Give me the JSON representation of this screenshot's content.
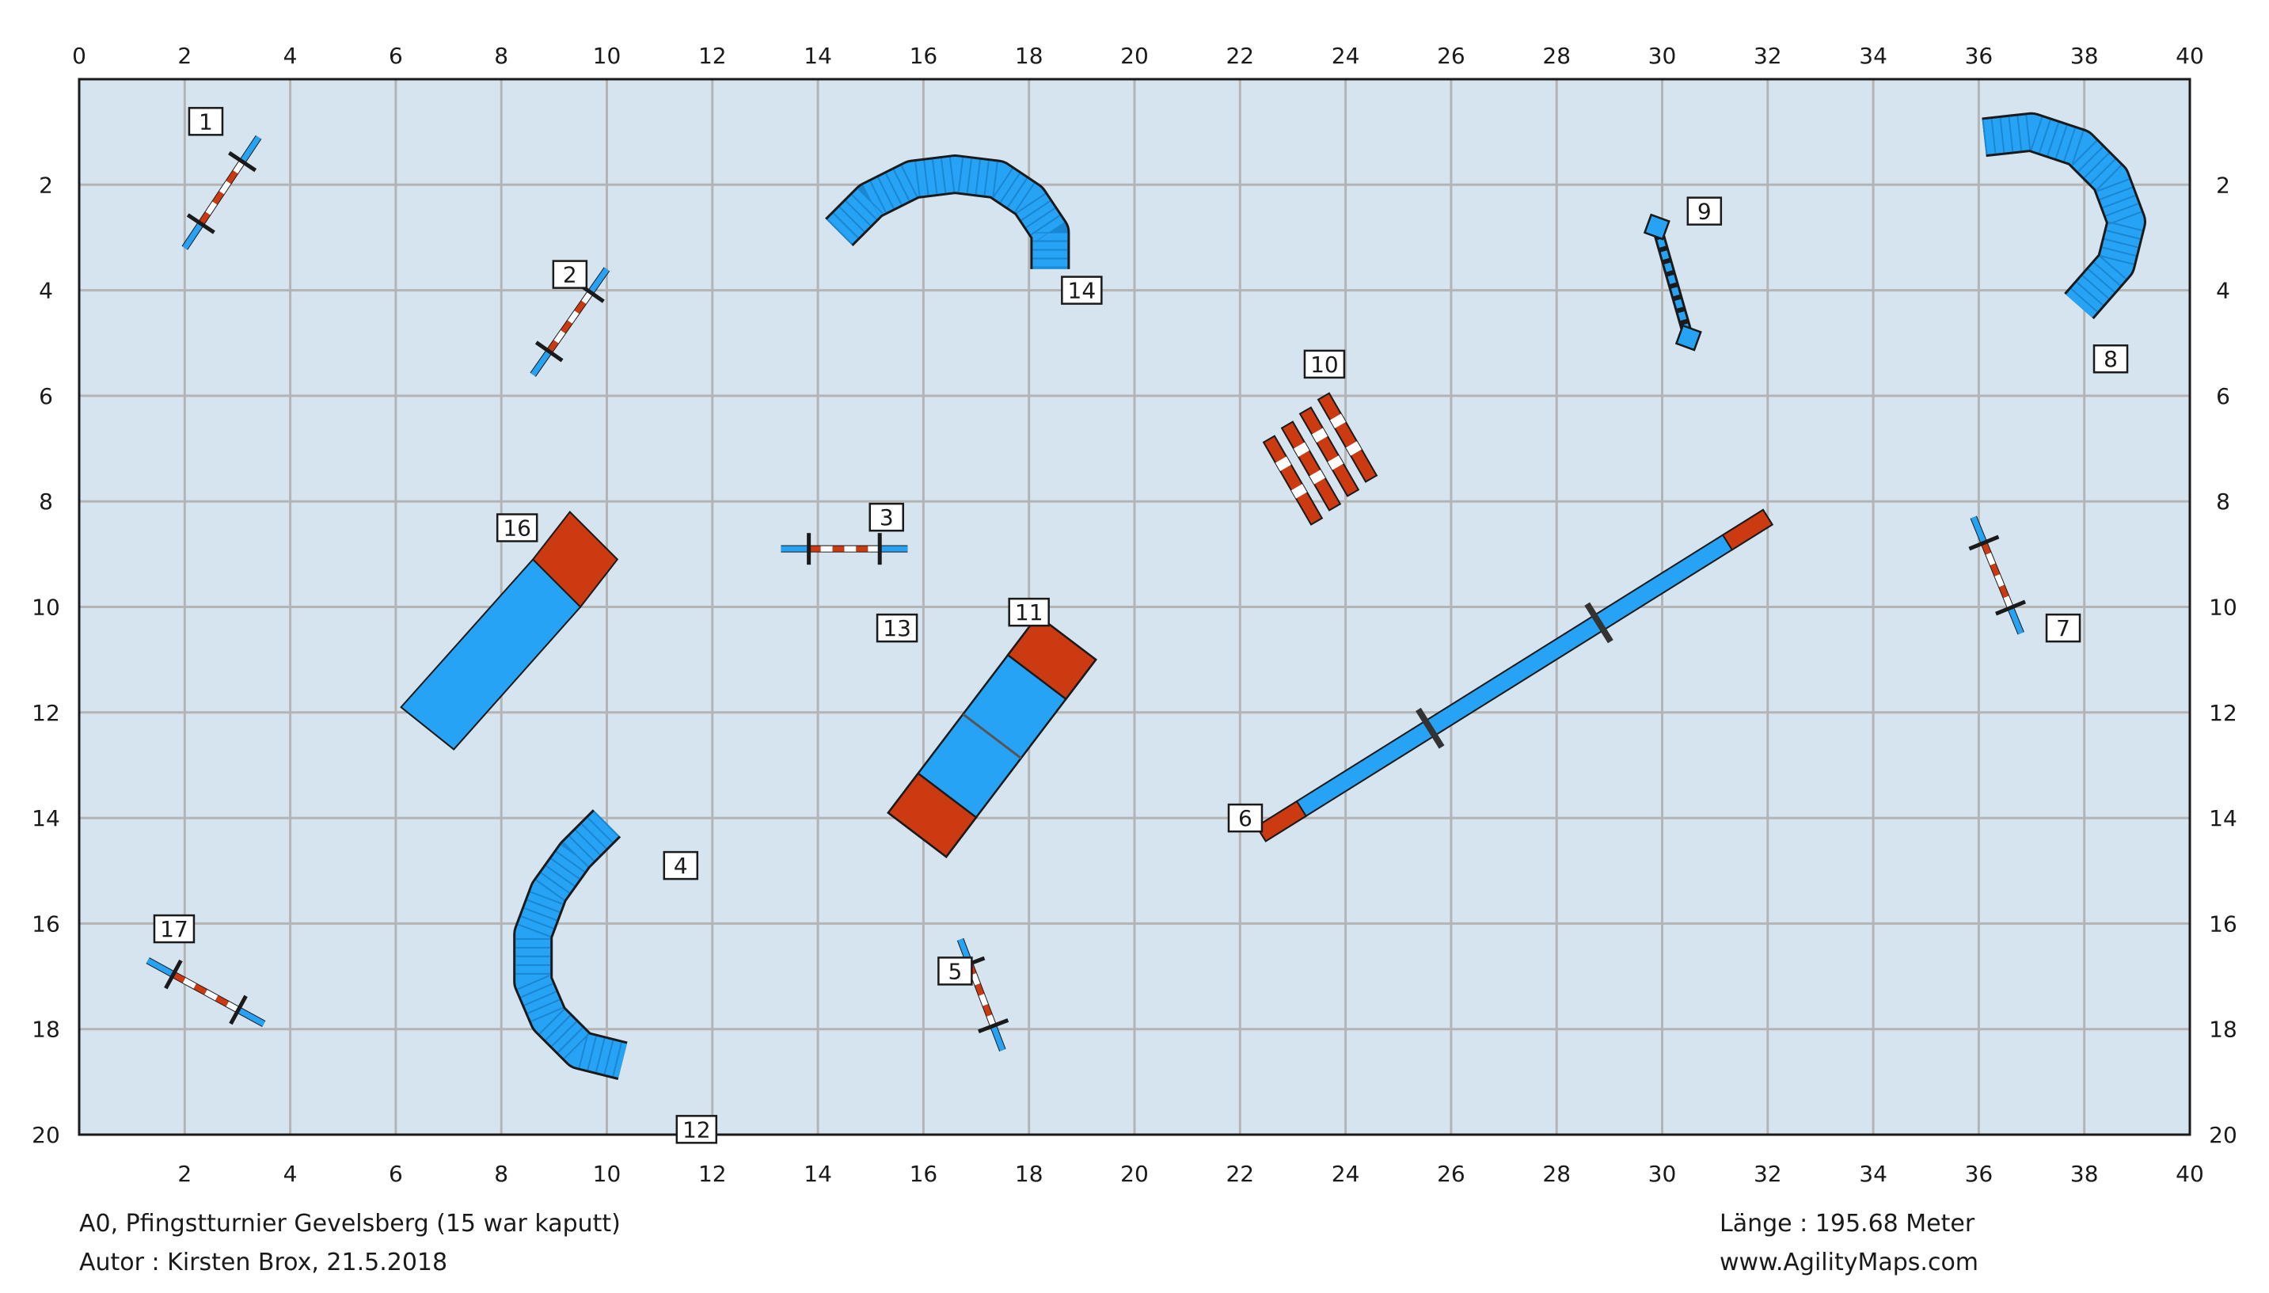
{
  "course": {
    "axis": {
      "x_max": 40,
      "y_max": 20,
      "grid_step": 2,
      "x_ticks_top": [
        "0",
        "2",
        "4",
        "6",
        "8",
        "10",
        "12",
        "14",
        "16",
        "18",
        "20",
        "22",
        "24",
        "26",
        "28",
        "30",
        "32",
        "34",
        "36",
        "38",
        "40"
      ],
      "x_ticks_bottom": [
        "2",
        "4",
        "6",
        "8",
        "10",
        "12",
        "14",
        "16",
        "18",
        "20",
        "22",
        "24",
        "26",
        "28",
        "30",
        "32",
        "34",
        "36",
        "38",
        "40"
      ],
      "y_ticks_left": [
        "2",
        "4",
        "6",
        "8",
        "10",
        "12",
        "14",
        "16",
        "18",
        "20"
      ],
      "y_ticks_right": [
        "2",
        "4",
        "6",
        "8",
        "10",
        "12",
        "14",
        "16",
        "18",
        "20"
      ]
    },
    "colors": {
      "field": "#d6e4f0",
      "grid": "#b4b4b4",
      "blue": "#27a3f5",
      "red": "#cc3a12",
      "border": "#1a1a1a"
    },
    "hurdles": [
      {
        "label": "1",
        "x1": 2.0,
        "y1": 3.2,
        "x2": 3.4,
        "y2": 1.1
      },
      {
        "label": "2",
        "x1": 8.6,
        "y1": 5.6,
        "x2": 10.0,
        "y2": 3.6
      },
      {
        "label": "3",
        "x1": 13.3,
        "y1": 8.9,
        "x2": 15.7,
        "y2": 8.9
      },
      {
        "label": "5",
        "x1": 16.7,
        "y1": 16.3,
        "x2": 17.5,
        "y2": 18.4
      },
      {
        "label": "7",
        "x1": 35.9,
        "y1": 8.3,
        "x2": 36.8,
        "y2": 10.5
      },
      {
        "label": "17",
        "x1": 1.3,
        "y1": 16.7,
        "x2": 3.5,
        "y2": 17.9
      }
    ],
    "tunnels": [
      {
        "label": "14",
        "points": [
          [
            14.4,
            2.9
          ],
          [
            15.0,
            2.3
          ],
          [
            15.8,
            1.9
          ],
          [
            16.6,
            1.8
          ],
          [
            17.4,
            1.9
          ],
          [
            18.0,
            2.3
          ],
          [
            18.4,
            2.9
          ],
          [
            18.4,
            3.6
          ]
        ]
      },
      {
        "label": "8",
        "points": [
          [
            36.1,
            1.1
          ],
          [
            37.0,
            1.0
          ],
          [
            37.9,
            1.3
          ],
          [
            38.5,
            1.9
          ],
          [
            38.8,
            2.7
          ],
          [
            38.6,
            3.5
          ],
          [
            37.9,
            4.3
          ]
        ]
      },
      {
        "label": "4",
        "points": [
          [
            10.0,
            14.1
          ],
          [
            9.4,
            14.7
          ],
          [
            8.9,
            15.4
          ],
          [
            8.6,
            16.2
          ],
          [
            8.6,
            17.1
          ],
          [
            8.9,
            17.8
          ],
          [
            9.5,
            18.4
          ],
          [
            10.3,
            18.6
          ]
        ]
      }
    ],
    "a_frame": {
      "label": "11"
    },
    "dogwalk": {
      "label": "6"
    },
    "tyre": {
      "label": "9"
    },
    "long_jump": {
      "label": "10"
    },
    "wall": {
      "label": "16"
    },
    "extra_labels": [
      {
        "label": "13"
      },
      {
        "label": "12"
      }
    ]
  },
  "footer": {
    "title": "A0, Pfingstturnier Gevelsberg (15 war kaputt)",
    "author": "Autor : Kirsten Brox, 21.5.2018",
    "length": "Länge : 195.68 Meter",
    "site": "www.AgilityMaps.com"
  }
}
